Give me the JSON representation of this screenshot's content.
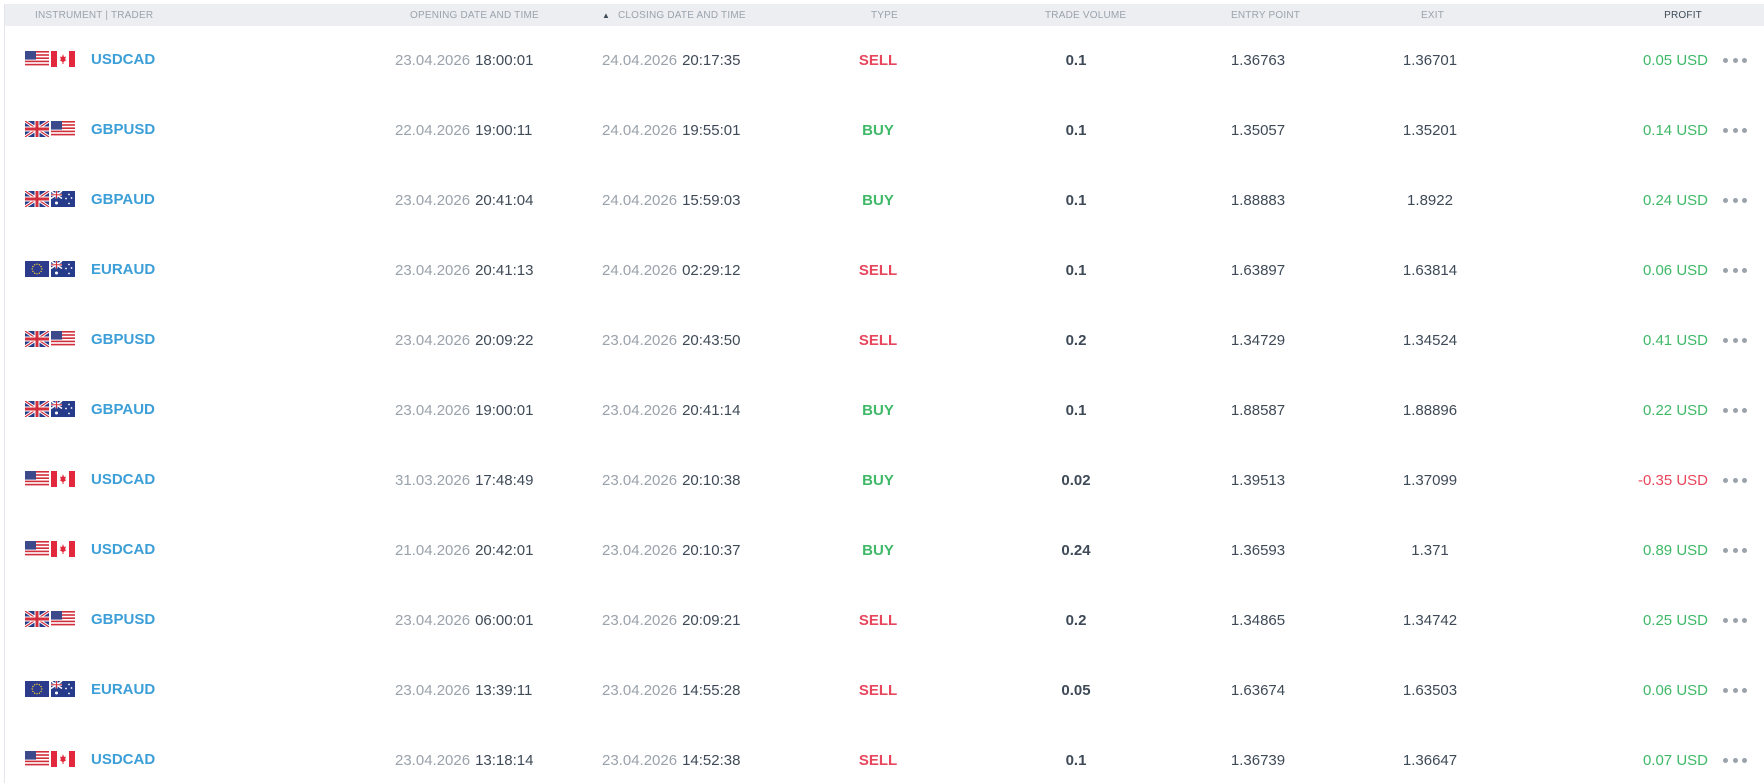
{
  "header": {
    "instrument": "INSTRUMENT | TRADER",
    "opening": "OPENING DATE AND TIME",
    "sort_arrow": "▲",
    "closing": "CLOSING DATE AND TIME",
    "type": "TYPE",
    "volume": "TRADE VOLUME",
    "entry": "ENTRY POINT",
    "exit": "EXIT",
    "profit": "PROFIT"
  },
  "colors": {
    "symbol": "#3d9fd8",
    "sell": "#e8465c",
    "buy": "#3fb968",
    "profit_pos": "#3fb968",
    "profit_neg": "#e8465c"
  },
  "rows": [
    {
      "flags": [
        "us-flag-icon",
        "ca-flag-icon"
      ],
      "symbol": "USDCAD",
      "open_date": "23.04.2026",
      "open_time": "18:00:01",
      "close_date": "24.04.2026",
      "close_time": "20:17:35",
      "type": "SELL",
      "volume": "0.1",
      "entry": "1.36763",
      "exit": "1.36701",
      "profit": "0.05 USD",
      "profit_sign": "pos"
    },
    {
      "flags": [
        "uk-flag-icon",
        "us-flag-icon"
      ],
      "symbol": "GBPUSD",
      "open_date": "22.04.2026",
      "open_time": "19:00:11",
      "close_date": "24.04.2026",
      "close_time": "19:55:01",
      "type": "BUY",
      "volume": "0.1",
      "entry": "1.35057",
      "exit": "1.35201",
      "profit": "0.14 USD",
      "profit_sign": "pos"
    },
    {
      "flags": [
        "uk-flag-icon",
        "au-flag-icon"
      ],
      "symbol": "GBPAUD",
      "open_date": "23.04.2026",
      "open_time": "20:41:04",
      "close_date": "24.04.2026",
      "close_time": "15:59:03",
      "type": "BUY",
      "volume": "0.1",
      "entry": "1.88883",
      "exit": "1.8922",
      "profit": "0.24 USD",
      "profit_sign": "pos"
    },
    {
      "flags": [
        "eu-flag-icon",
        "au-flag-icon"
      ],
      "symbol": "EURAUD",
      "open_date": "23.04.2026",
      "open_time": "20:41:13",
      "close_date": "24.04.2026",
      "close_time": "02:29:12",
      "type": "SELL",
      "volume": "0.1",
      "entry": "1.63897",
      "exit": "1.63814",
      "profit": "0.06 USD",
      "profit_sign": "pos"
    },
    {
      "flags": [
        "uk-flag-icon",
        "us-flag-icon"
      ],
      "symbol": "GBPUSD",
      "open_date": "23.04.2026",
      "open_time": "20:09:22",
      "close_date": "23.04.2026",
      "close_time": "20:43:50",
      "type": "SELL",
      "volume": "0.2",
      "entry": "1.34729",
      "exit": "1.34524",
      "profit": "0.41 USD",
      "profit_sign": "pos"
    },
    {
      "flags": [
        "uk-flag-icon",
        "au-flag-icon"
      ],
      "symbol": "GBPAUD",
      "open_date": "23.04.2026",
      "open_time": "19:00:01",
      "close_date": "23.04.2026",
      "close_time": "20:41:14",
      "type": "BUY",
      "volume": "0.1",
      "entry": "1.88587",
      "exit": "1.88896",
      "profit": "0.22 USD",
      "profit_sign": "pos"
    },
    {
      "flags": [
        "us-flag-icon",
        "ca-flag-icon"
      ],
      "symbol": "USDCAD",
      "open_date": "31.03.2026",
      "open_time": "17:48:49",
      "close_date": "23.04.2026",
      "close_time": "20:10:38",
      "type": "BUY",
      "volume": "0.02",
      "entry": "1.39513",
      "exit": "1.37099",
      "profit": "-0.35 USD",
      "profit_sign": "neg"
    },
    {
      "flags": [
        "us-flag-icon",
        "ca-flag-icon"
      ],
      "symbol": "USDCAD",
      "open_date": "21.04.2026",
      "open_time": "20:42:01",
      "close_date": "23.04.2026",
      "close_time": "20:10:37",
      "type": "BUY",
      "volume": "0.24",
      "entry": "1.36593",
      "exit": "1.371",
      "profit": "0.89 USD",
      "profit_sign": "pos"
    },
    {
      "flags": [
        "uk-flag-icon",
        "us-flag-icon"
      ],
      "symbol": "GBPUSD",
      "open_date": "23.04.2026",
      "open_time": "06:00:01",
      "close_date": "23.04.2026",
      "close_time": "20:09:21",
      "type": "SELL",
      "volume": "0.2",
      "entry": "1.34865",
      "exit": "1.34742",
      "profit": "0.25 USD",
      "profit_sign": "pos"
    },
    {
      "flags": [
        "eu-flag-icon",
        "au-flag-icon"
      ],
      "symbol": "EURAUD",
      "open_date": "23.04.2026",
      "open_time": "13:39:11",
      "close_date": "23.04.2026",
      "close_time": "14:55:28",
      "type": "SELL",
      "volume": "0.05",
      "entry": "1.63674",
      "exit": "1.63503",
      "profit": "0.06 USD",
      "profit_sign": "pos"
    },
    {
      "flags": [
        "us-flag-icon",
        "ca-flag-icon"
      ],
      "symbol": "USDCAD",
      "open_date": "23.04.2026",
      "open_time": "13:18:14",
      "close_date": "23.04.2026",
      "close_time": "14:52:38",
      "type": "SELL",
      "volume": "0.1",
      "entry": "1.36739",
      "exit": "1.36647",
      "profit": "0.07 USD",
      "profit_sign": "pos"
    }
  ]
}
